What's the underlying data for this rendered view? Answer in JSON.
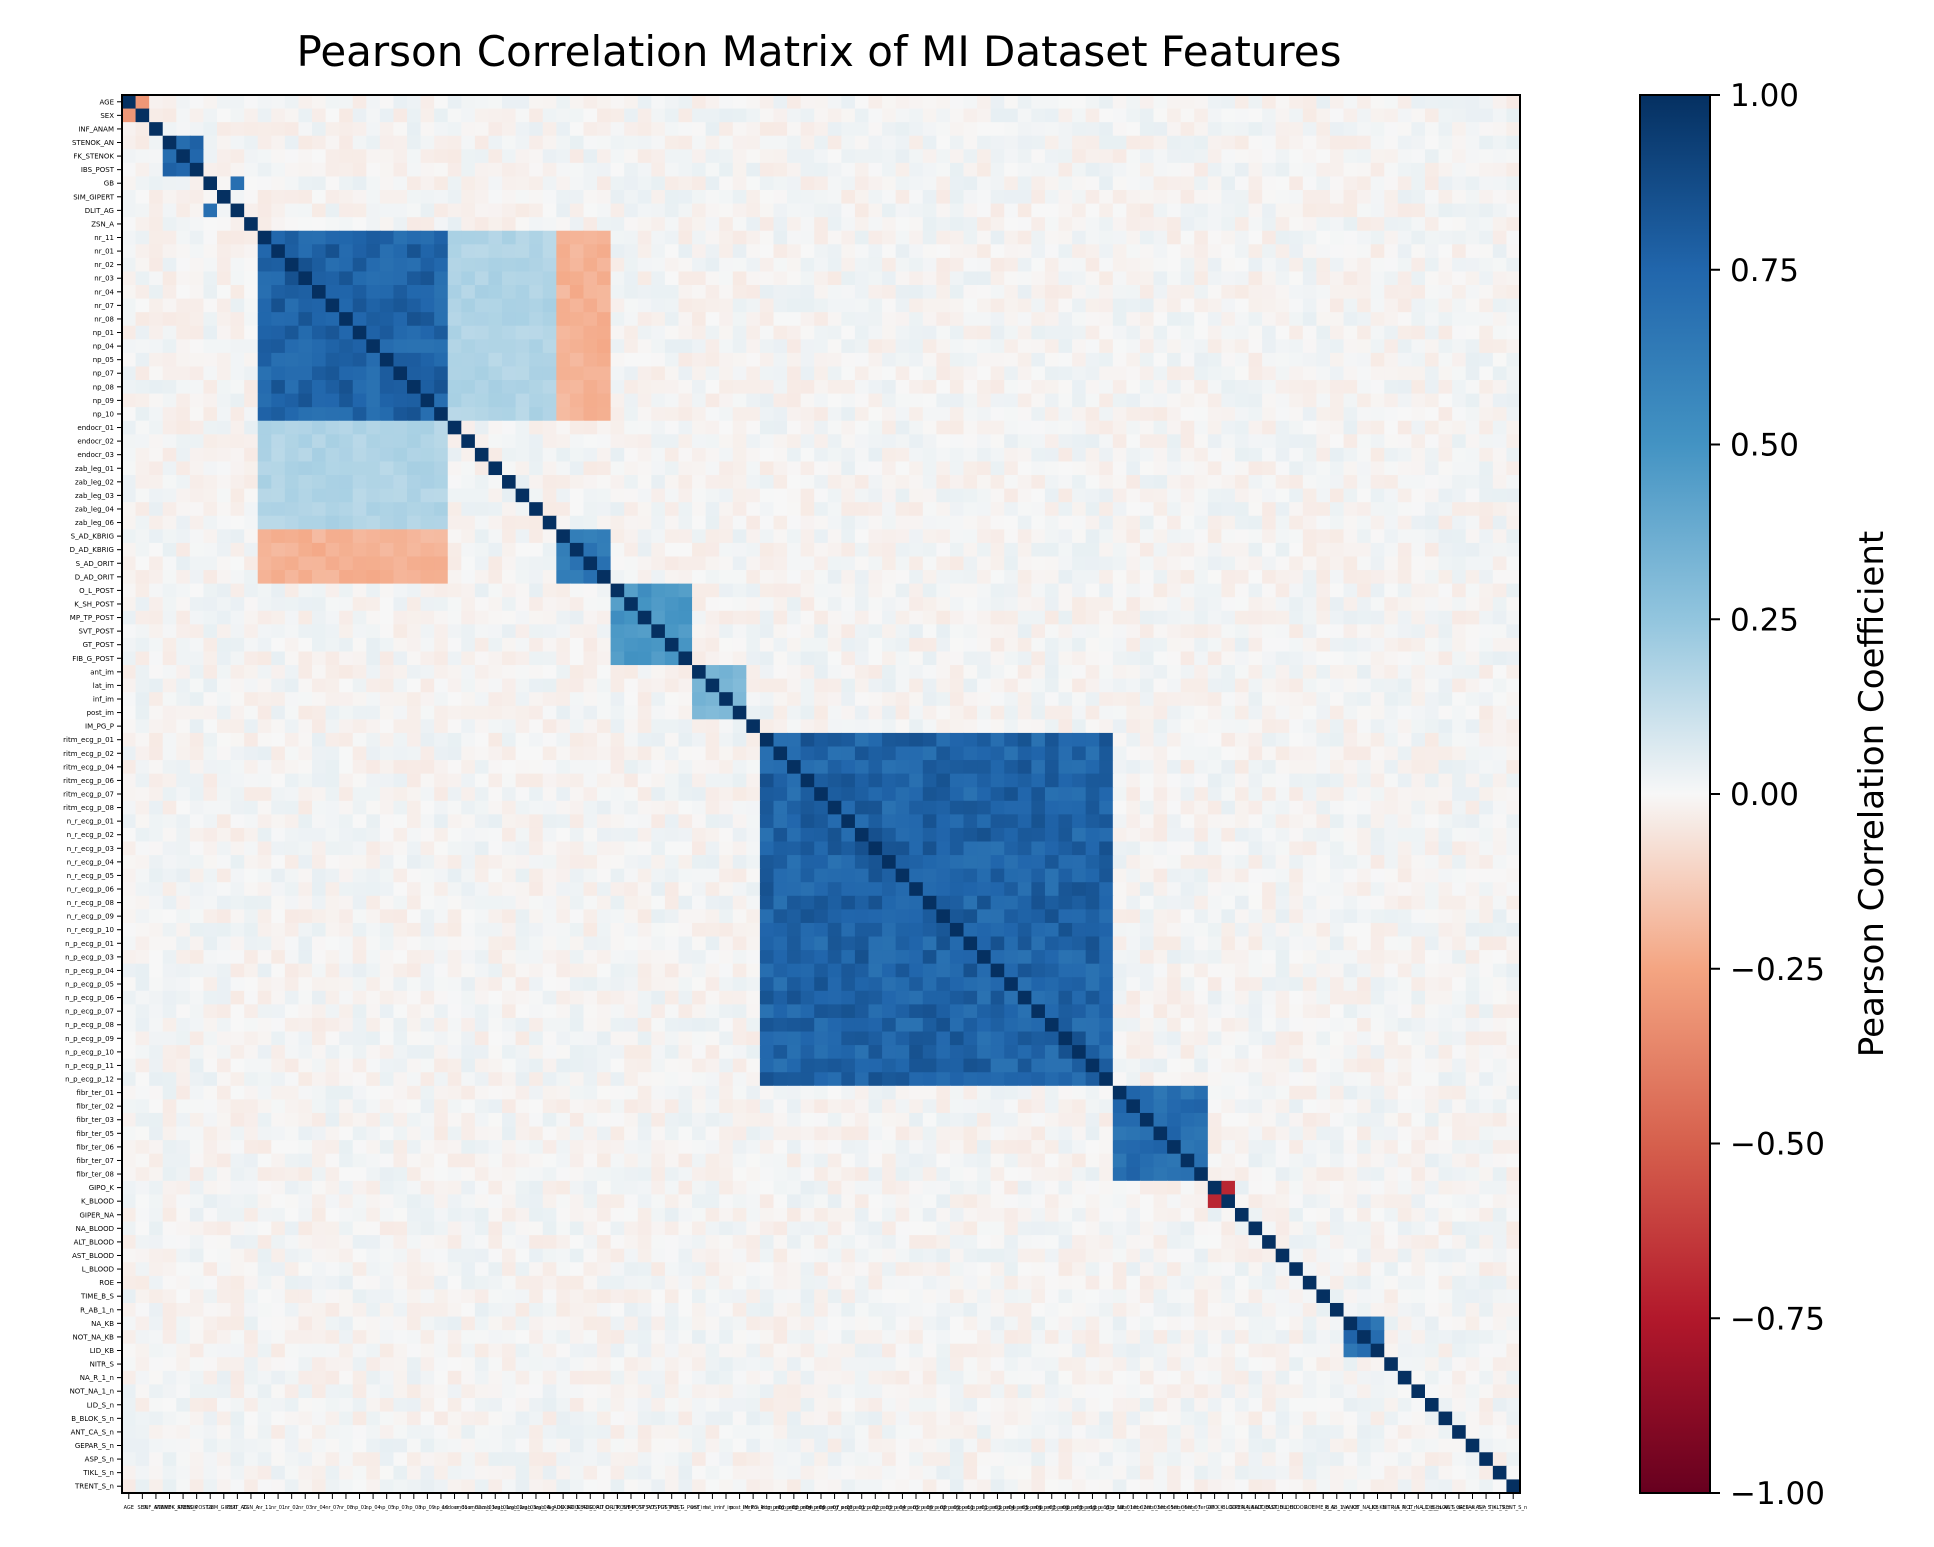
{
  "chart_data": {
    "type": "heatmap",
    "title": "Pearson Correlation Matrix of MI Dataset Features",
    "xlabel": "",
    "ylabel": "",
    "colorbar": {
      "label": "Pearson Correlation Coefficient",
      "range": [
        -1.0,
        1.0
      ],
      "ticks": [
        "1.00",
        "0.75",
        "0.50",
        "0.25",
        "0.00",
        "−0.25",
        "−0.50",
        "−0.75",
        "−1.00"
      ],
      "tick_values": [
        1.0,
        0.75,
        0.5,
        0.25,
        0.0,
        -0.25,
        -0.5,
        -0.75,
        -1.0
      ],
      "colormap": "RdBu",
      "colors": {
        "neg1": "#67001f",
        "neg05": "#d6604d",
        "zero": "#f7f7f7",
        "pos05": "#4393c3",
        "pos1": "#053061"
      }
    },
    "labels": [
      "AGE",
      "SEX",
      "INF_ANAM",
      "STENOK_AN",
      "FK_STENOK",
      "IBS_POST",
      "GB",
      "SIM_GIPERT",
      "DLIT_AG",
      "ZSN_A",
      "nr_11",
      "nr_01",
      "nr_02",
      "nr_03",
      "nr_04",
      "nr_07",
      "nr_08",
      "np_01",
      "np_04",
      "np_05",
      "np_07",
      "np_08",
      "np_09",
      "np_10",
      "endocr_01",
      "endocr_02",
      "endocr_03",
      "zab_leg_01",
      "zab_leg_02",
      "zab_leg_03",
      "zab_leg_04",
      "zab_leg_06",
      "S_AD_KBRIG",
      "D_AD_KBRIG",
      "S_AD_ORIT",
      "D_AD_ORIT",
      "O_L_POST",
      "K_SH_POST",
      "MP_TP_POST",
      "SVT_POST",
      "GT_POST",
      "FIB_G_POST",
      "ant_im",
      "lat_im",
      "inf_im",
      "post_im",
      "IM_PG_P",
      "ritm_ecg_p_01",
      "ritm_ecg_p_02",
      "ritm_ecg_p_04",
      "ritm_ecg_p_06",
      "ritm_ecg_p_07",
      "ritm_ecg_p_08",
      "n_r_ecg_p_01",
      "n_r_ecg_p_02",
      "n_r_ecg_p_03",
      "n_r_ecg_p_04",
      "n_r_ecg_p_05",
      "n_r_ecg_p_06",
      "n_r_ecg_p_08",
      "n_r_ecg_p_09",
      "n_r_ecg_p_10",
      "n_p_ecg_p_01",
      "n_p_ecg_p_03",
      "n_p_ecg_p_04",
      "n_p_ecg_p_05",
      "n_p_ecg_p_06",
      "n_p_ecg_p_07",
      "n_p_ecg_p_08",
      "n_p_ecg_p_09",
      "n_p_ecg_p_10",
      "n_p_ecg_p_11",
      "n_p_ecg_p_12",
      "fibr_ter_01",
      "fibr_ter_02",
      "fibr_ter_03",
      "fibr_ter_05",
      "fibr_ter_06",
      "fibr_ter_07",
      "fibr_ter_08",
      "GIPO_K",
      "K_BLOOD",
      "GIPER_NA",
      "NA_BLOOD",
      "ALT_BLOOD",
      "AST_BLOOD",
      "L_BLOOD",
      "ROE",
      "TIME_B_S",
      "R_AB_1_n",
      "NA_KB",
      "NOT_NA_KB",
      "LID_KB",
      "NITR_S",
      "NA_R_1_n",
      "NOT_NA_1_n",
      "LID_S_n",
      "B_BLOK_S_n",
      "ANT_CA_S_n",
      "GEPAR_S_n",
      "ASP_S_n",
      "TIKL_S_n",
      "TRENT_S_n"
    ],
    "blocks": [
      {
        "from": "STENOK_AN",
        "to": "IBS_POST",
        "r": 0.78
      },
      {
        "from": "nr_11",
        "to": "np_10",
        "r": 0.85
      },
      {
        "from": "S_AD_KBRIG",
        "to": "D_AD_ORIT",
        "r": 0.7
      },
      {
        "from": "O_L_POST",
        "to": "FIB_G_POST",
        "r": 0.55
      },
      {
        "from": "ant_im",
        "to": "post_im",
        "r": 0.35
      },
      {
        "from": "ritm_ecg_p_01",
        "to": "n_p_ecg_p_12",
        "r": 0.85
      },
      {
        "from": "fibr_ter_01",
        "to": "fibr_ter_08",
        "r": 0.8
      },
      {
        "from": "NA_KB",
        "to": "LID_KB",
        "r": 0.8
      }
    ],
    "notable_pairs": [
      {
        "a": "GIPO_K",
        "b": "K_BLOOD",
        "r": -0.7
      },
      {
        "a": "GB",
        "b": "DLIT_AG",
        "r": 0.7
      },
      {
        "a": "AGE",
        "b": "SEX",
        "r": -0.3
      }
    ]
  }
}
